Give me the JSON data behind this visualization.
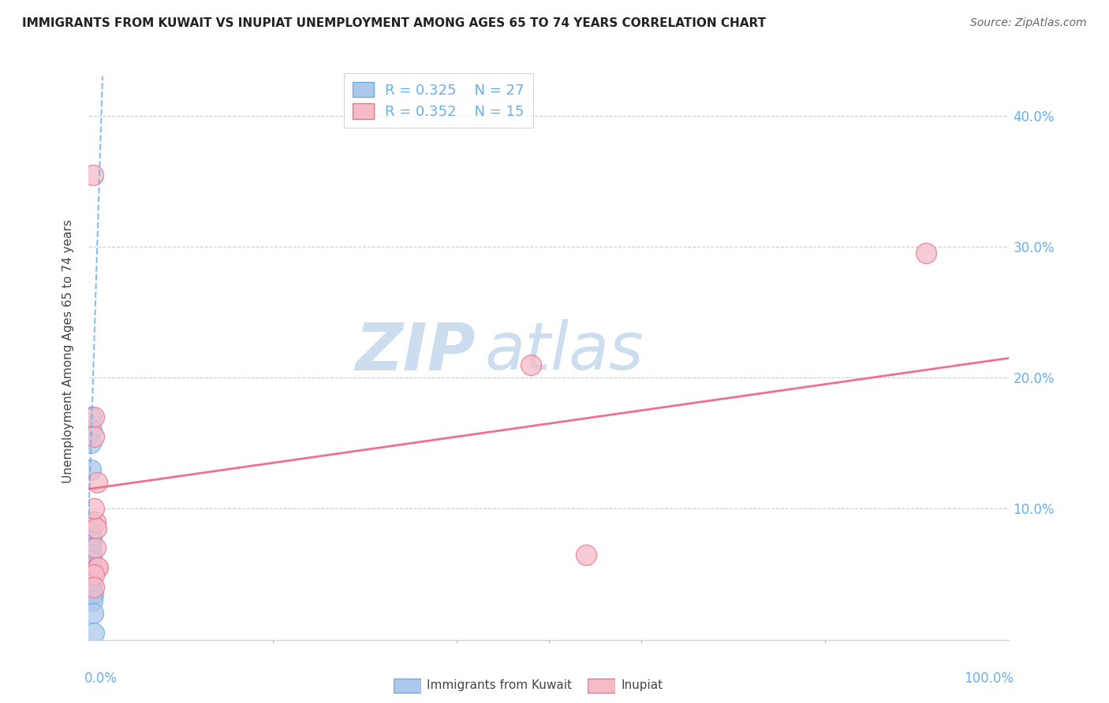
{
  "title": "IMMIGRANTS FROM KUWAIT VS INUPIAT UNEMPLOYMENT AMONG AGES 65 TO 74 YEARS CORRELATION CHART",
  "source": "Source: ZipAtlas.com",
  "ylabel": "Unemployment Among Ages 65 to 74 years",
  "legend_x_bottom": "Immigrants from Kuwait",
  "legend_x_bottom2": "Inupiat",
  "yticks": [
    0.0,
    0.1,
    0.2,
    0.3,
    0.4
  ],
  "ytick_labels": [
    "",
    "10.0%",
    "20.0%",
    "30.0%",
    "40.0%"
  ],
  "xlim": [
    0.0,
    1.0
  ],
  "ylim": [
    0.0,
    0.44
  ],
  "kuwait_R": 0.325,
  "kuwait_N": 27,
  "inupiat_R": 0.352,
  "inupiat_N": 15,
  "blue_color": "#adc8ea",
  "blue_line_color": "#6aaee8",
  "pink_color": "#f5bcc8",
  "pink_line_color": "#f07090",
  "watermark_color": "#ccddf0",
  "kuwait_points_x": [
    0.002,
    0.003,
    0.002,
    0.002,
    0.002,
    0.004,
    0.003,
    0.003,
    0.002,
    0.002,
    0.002,
    0.003,
    0.002,
    0.002,
    0.003,
    0.002,
    0.002,
    0.002,
    0.002,
    0.002,
    0.003,
    0.003,
    0.002,
    0.005,
    0.004,
    0.005,
    0.006
  ],
  "kuwait_points_y": [
    0.17,
    0.16,
    0.15,
    0.13,
    0.09,
    0.09,
    0.08,
    0.075,
    0.07,
    0.07,
    0.065,
    0.065,
    0.06,
    0.06,
    0.055,
    0.05,
    0.05,
    0.05,
    0.045,
    0.04,
    0.04,
    0.038,
    0.035,
    0.035,
    0.03,
    0.02,
    0.005
  ],
  "inupiat_points_x": [
    0.005,
    0.006,
    0.006,
    0.009,
    0.007,
    0.007,
    0.008,
    0.48,
    0.54,
    0.009,
    0.01,
    0.006,
    0.91,
    0.006,
    0.006
  ],
  "inupiat_points_y": [
    0.355,
    0.17,
    0.155,
    0.12,
    0.09,
    0.07,
    0.085,
    0.21,
    0.065,
    0.055,
    0.055,
    0.1,
    0.295,
    0.05,
    0.04
  ],
  "blue_trendline_x": [
    0.0,
    0.015
  ],
  "blue_trendline_y": [
    0.095,
    0.43
  ],
  "pink_trendline_x": [
    0.0,
    1.0
  ],
  "pink_trendline_y": [
    0.115,
    0.215
  ]
}
